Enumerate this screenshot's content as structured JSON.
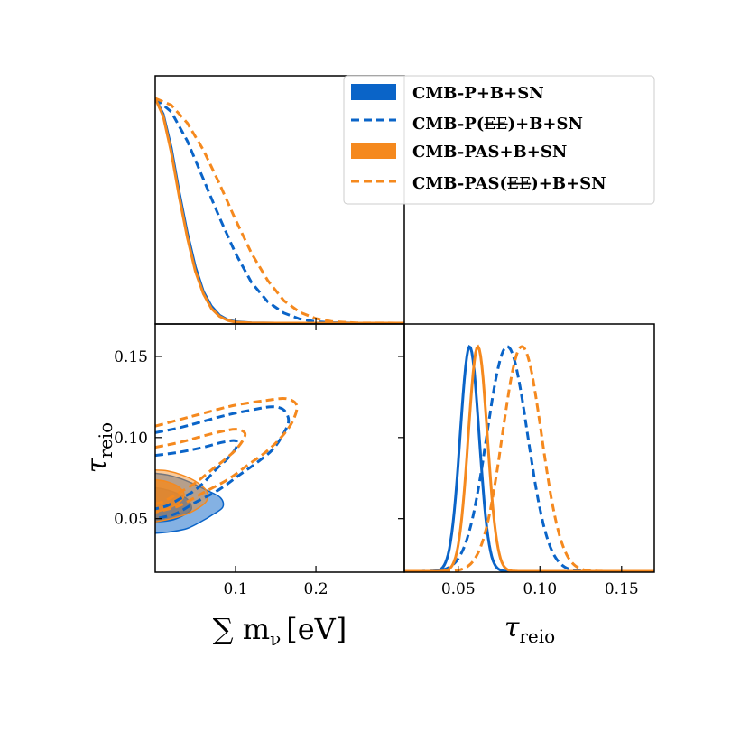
{
  "chart_data": {
    "type": "corner-plot",
    "colors": {
      "blue": "#0a64c8",
      "orange": "#f5891e"
    },
    "parameters": [
      {
        "key": "mnu",
        "label": "∑ m",
        "subscript": "ν",
        "unit": "[eV]",
        "range": [
          0.0,
          0.31
        ],
        "ticks": [
          0.1,
          0.2
        ],
        "tick_labels": [
          "0.1",
          "0.2"
        ]
      },
      {
        "key": "tau",
        "label": "τ",
        "subscript": "reio",
        "unit": "",
        "range": [
          0.017,
          0.17
        ],
        "ticks": [
          0.05,
          0.1,
          0.15
        ],
        "tick_labels": [
          "0.05",
          "0.10",
          "0.15"
        ]
      }
    ],
    "x_tick_labels_tau": [
      "0.05",
      "0.10",
      "0.15"
    ],
    "legend": [
      {
        "label_pre": "CMB-P",
        "label_strike": "",
        "label_post": "+B+SN",
        "style": "filled",
        "color": "#0a64c8"
      },
      {
        "label_pre": "CMB-P(",
        "label_strike": "EE",
        "label_post": ")+B+SN",
        "style": "dashed",
        "color": "#0a64c8"
      },
      {
        "label_pre": "CMB-PAS",
        "label_strike": "",
        "label_post": "+B+SN",
        "style": "filled",
        "color": "#f5891e"
      },
      {
        "label_pre": "CMB-PAS(",
        "label_strike": "EE",
        "label_post": ")+B+SN",
        "style": "dashed",
        "color": "#f5891e"
      }
    ],
    "mnu_1d": [
      {
        "name": "CMB-P+B+SN",
        "color": "#0a64c8",
        "dash": false,
        "points": [
          [
            0.0,
            1.0
          ],
          [
            0.01,
            0.93
          ],
          [
            0.02,
            0.78
          ],
          [
            0.03,
            0.58
          ],
          [
            0.04,
            0.4
          ],
          [
            0.05,
            0.25
          ],
          [
            0.06,
            0.14
          ],
          [
            0.07,
            0.075
          ],
          [
            0.08,
            0.035
          ],
          [
            0.09,
            0.015
          ],
          [
            0.1,
            0.006
          ],
          [
            0.12,
            0.001
          ],
          [
            0.15,
            0.0
          ],
          [
            0.31,
            0.0
          ]
        ]
      },
      {
        "name": "CMB-P(EE)+B+SN",
        "color": "#0a64c8",
        "dash": true,
        "points": [
          [
            0.0,
            1.0
          ],
          [
            0.02,
            0.94
          ],
          [
            0.04,
            0.81
          ],
          [
            0.06,
            0.64
          ],
          [
            0.08,
            0.47
          ],
          [
            0.1,
            0.31
          ],
          [
            0.12,
            0.18
          ],
          [
            0.14,
            0.095
          ],
          [
            0.16,
            0.045
          ],
          [
            0.18,
            0.018
          ],
          [
            0.2,
            0.006
          ],
          [
            0.22,
            0.002
          ],
          [
            0.25,
            0.0
          ],
          [
            0.31,
            0.0
          ]
        ]
      },
      {
        "name": "CMB-PAS+B+SN",
        "color": "#f5891e",
        "dash": false,
        "points": [
          [
            0.0,
            1.0
          ],
          [
            0.01,
            0.92
          ],
          [
            0.02,
            0.76
          ],
          [
            0.03,
            0.56
          ],
          [
            0.04,
            0.38
          ],
          [
            0.05,
            0.23
          ],
          [
            0.06,
            0.13
          ],
          [
            0.07,
            0.065
          ],
          [
            0.08,
            0.03
          ],
          [
            0.09,
            0.012
          ],
          [
            0.1,
            0.004
          ],
          [
            0.12,
            0.001
          ],
          [
            0.15,
            0.0
          ],
          [
            0.31,
            0.0
          ]
        ]
      },
      {
        "name": "CMB-PAS(EE)+B+SN",
        "color": "#f5891e",
        "dash": true,
        "points": [
          [
            0.0,
            1.0
          ],
          [
            0.02,
            0.97
          ],
          [
            0.04,
            0.89
          ],
          [
            0.06,
            0.77
          ],
          [
            0.08,
            0.62
          ],
          [
            0.1,
            0.46
          ],
          [
            0.12,
            0.31
          ],
          [
            0.14,
            0.19
          ],
          [
            0.16,
            0.1
          ],
          [
            0.18,
            0.048
          ],
          [
            0.2,
            0.02
          ],
          [
            0.22,
            0.007
          ],
          [
            0.25,
            0.001
          ],
          [
            0.31,
            0.0
          ]
        ]
      }
    ],
    "tau_1d": [
      {
        "name": "CMB-P+B+SN",
        "color": "#0a64c8",
        "dash": false,
        "mean": 0.057,
        "sigma": 0.0058
      },
      {
        "name": "CMB-P(EE)+B+SN",
        "color": "#0a64c8",
        "dash": true,
        "mean": 0.08,
        "sigma": 0.0125
      },
      {
        "name": "CMB-PAS+B+SN",
        "color": "#f5891e",
        "dash": false,
        "mean": 0.062,
        "sigma": 0.0058
      },
      {
        "name": "CMB-PAS(EE)+B+SN",
        "color": "#f5891e",
        "dash": true,
        "mean": 0.089,
        "sigma": 0.012
      }
    ],
    "contours_2d": [
      {
        "name": "CMB-P+B+SN 95%",
        "color": "#0a64c8",
        "fill_opacity": 0.5,
        "dash": false,
        "points": [
          [
            0.0,
            0.041
          ],
          [
            0.02,
            0.042
          ],
          [
            0.04,
            0.044
          ],
          [
            0.06,
            0.049
          ],
          [
            0.07,
            0.052
          ],
          [
            0.084,
            0.057
          ],
          [
            0.081,
            0.063
          ],
          [
            0.062,
            0.068
          ],
          [
            0.045,
            0.072
          ],
          [
            0.03,
            0.075
          ],
          [
            0.015,
            0.077
          ],
          [
            0.0,
            0.078
          ]
        ]
      },
      {
        "name": "CMB-P+B+SN 68%",
        "color": "#0a64c8",
        "fill_opacity": 0.75,
        "dash": false,
        "points": [
          [
            0.0,
            0.048
          ],
          [
            0.02,
            0.049
          ],
          [
            0.035,
            0.052
          ],
          [
            0.045,
            0.056
          ],
          [
            0.04,
            0.062
          ],
          [
            0.025,
            0.066
          ],
          [
            0.012,
            0.068
          ],
          [
            0.0,
            0.069
          ]
        ]
      },
      {
        "name": "CMB-PAS+B+SN 95%",
        "color": "#f5891e",
        "fill_opacity": 0.45,
        "dash": false,
        "points": [
          [
            0.0,
            0.048
          ],
          [
            0.02,
            0.05
          ],
          [
            0.04,
            0.053
          ],
          [
            0.055,
            0.057
          ],
          [
            0.064,
            0.061
          ],
          [
            0.064,
            0.067
          ],
          [
            0.05,
            0.073
          ],
          [
            0.033,
            0.077
          ],
          [
            0.015,
            0.0795
          ],
          [
            0.0,
            0.08
          ]
        ]
      },
      {
        "name": "CMB-PAS+B+SN 68%",
        "color": "#f5891e",
        "fill_opacity": 0.8,
        "dash": false,
        "points": [
          [
            0.0,
            0.054
          ],
          [
            0.015,
            0.056
          ],
          [
            0.03,
            0.06
          ],
          [
            0.036,
            0.065
          ],
          [
            0.028,
            0.07
          ],
          [
            0.013,
            0.073
          ],
          [
            0.0,
            0.074
          ]
        ]
      },
      {
        "name": "CMB-P(EE)+B+SN 68%",
        "color": "#0a64c8",
        "dash": true,
        "points": [
          [
            0.0,
            0.089
          ],
          [
            0.03,
            0.091
          ],
          [
            0.06,
            0.094
          ],
          [
            0.083,
            0.097
          ],
          [
            0.1,
            0.098
          ],
          [
            0.101,
            0.094
          ],
          [
            0.09,
            0.087
          ],
          [
            0.075,
            0.08
          ],
          [
            0.06,
            0.072
          ],
          [
            0.045,
            0.066
          ],
          [
            0.03,
            0.062
          ],
          [
            0.015,
            0.058
          ],
          [
            0.0,
            0.056
          ]
        ]
      },
      {
        "name": "CMB-P(EE)+B+SN 95%",
        "color": "#0a64c8",
        "dash": true,
        "points": [
          [
            0.0,
            0.103
          ],
          [
            0.03,
            0.106
          ],
          [
            0.06,
            0.11
          ],
          [
            0.09,
            0.114
          ],
          [
            0.12,
            0.117
          ],
          [
            0.145,
            0.119
          ],
          [
            0.16,
            0.117
          ],
          [
            0.166,
            0.11
          ],
          [
            0.158,
            0.101
          ],
          [
            0.145,
            0.092
          ],
          [
            0.125,
            0.084
          ],
          [
            0.105,
            0.077
          ],
          [
            0.08,
            0.068
          ],
          [
            0.05,
            0.06
          ],
          [
            0.025,
            0.053
          ],
          [
            0.0,
            0.05
          ]
        ]
      },
      {
        "name": "CMB-PAS(EE)+B+SN 68%",
        "color": "#f5891e",
        "dash": true,
        "points": [
          [
            0.0,
            0.094
          ],
          [
            0.03,
            0.097
          ],
          [
            0.06,
            0.101
          ],
          [
            0.085,
            0.104
          ],
          [
            0.102,
            0.105
          ],
          [
            0.112,
            0.102
          ],
          [
            0.103,
            0.094
          ],
          [
            0.088,
            0.087
          ],
          [
            0.07,
            0.08
          ],
          [
            0.05,
            0.072
          ],
          [
            0.03,
            0.066
          ],
          [
            0.012,
            0.061
          ],
          [
            0.0,
            0.059
          ]
        ]
      },
      {
        "name": "CMB-PAS(EE)+B+SN 95%",
        "color": "#f5891e",
        "dash": true,
        "points": [
          [
            0.0,
            0.107
          ],
          [
            0.03,
            0.111
          ],
          [
            0.06,
            0.115
          ],
          [
            0.1,
            0.12
          ],
          [
            0.14,
            0.123
          ],
          [
            0.163,
            0.124
          ],
          [
            0.176,
            0.12
          ],
          [
            0.172,
            0.111
          ],
          [
            0.16,
            0.102
          ],
          [
            0.14,
            0.092
          ],
          [
            0.115,
            0.083
          ],
          [
            0.09,
            0.074
          ],
          [
            0.06,
            0.066
          ],
          [
            0.03,
            0.058
          ],
          [
            0.0,
            0.054
          ]
        ]
      }
    ]
  }
}
